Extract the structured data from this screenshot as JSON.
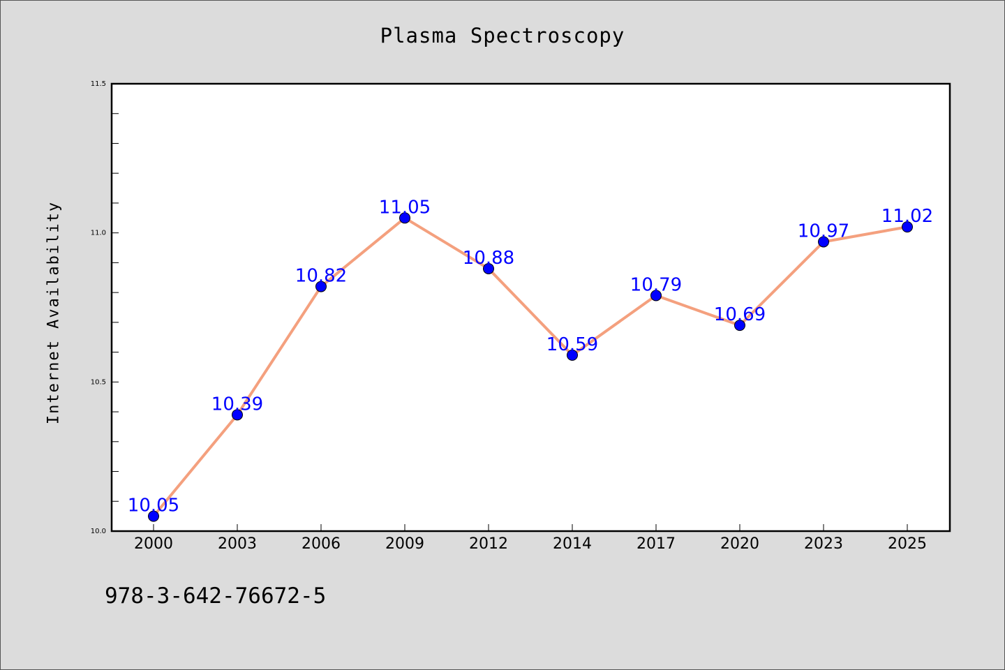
{
  "chart_data": {
    "type": "line",
    "title": "Plasma Spectroscopy",
    "xlabel": "",
    "ylabel": "Internet Availability",
    "categories": [
      "2000",
      "2003",
      "2006",
      "2009",
      "2012",
      "2014",
      "2017",
      "2020",
      "2023",
      "2025"
    ],
    "values": [
      10.05,
      10.39,
      10.82,
      11.05,
      10.88,
      10.59,
      10.79,
      10.69,
      10.97,
      11.02
    ],
    "value_labels": [
      "10.05",
      "10.39",
      "10.82",
      "11.05",
      "10.88",
      "10.59",
      "10.79",
      "10.69",
      "10.97",
      "11.02"
    ],
    "ylim": [
      10.0,
      11.5
    ],
    "yticks": [
      "10.0",
      "10.5",
      "11.0",
      "11.5"
    ],
    "ytick_values": [
      10.0,
      10.5,
      11.0,
      11.5
    ],
    "grid": false,
    "line_color": "#f4a07e",
    "marker_color": "#0000ff",
    "label_color": "#0000ff"
  },
  "footer_text": "978-3-642-76672-5"
}
